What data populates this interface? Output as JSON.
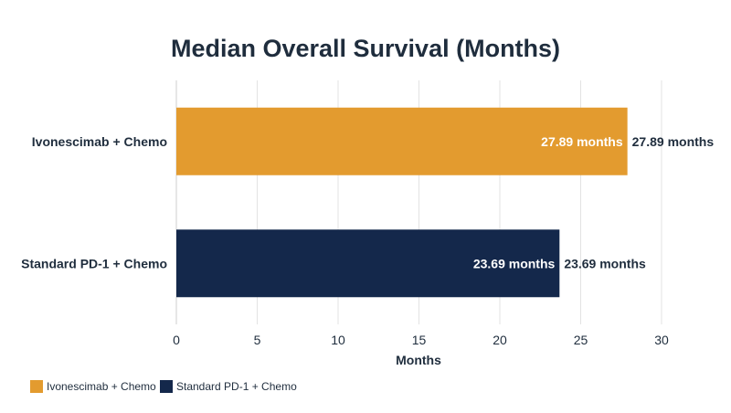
{
  "chart_data": {
    "type": "bar",
    "orientation": "horizontal",
    "title": "Median Overall Survival (Months)",
    "xlabel": "Months",
    "ylabel": "",
    "xlim": [
      0,
      30
    ],
    "xticks": [
      0,
      5,
      10,
      15,
      20,
      25,
      30
    ],
    "grid": true,
    "legend_position": "bottom-left",
    "categories": [
      "Ivonescimab + Chemo",
      "Standard PD-1 + Chemo"
    ],
    "values": [
      27.89,
      23.69
    ],
    "value_labels": [
      "27.89 months",
      "23.69 months"
    ],
    "colors": [
      "#e39b2f",
      "#14284b"
    ],
    "legend": [
      "Ivonescimab + Chemo",
      "Standard PD-1 + Chemo"
    ]
  }
}
